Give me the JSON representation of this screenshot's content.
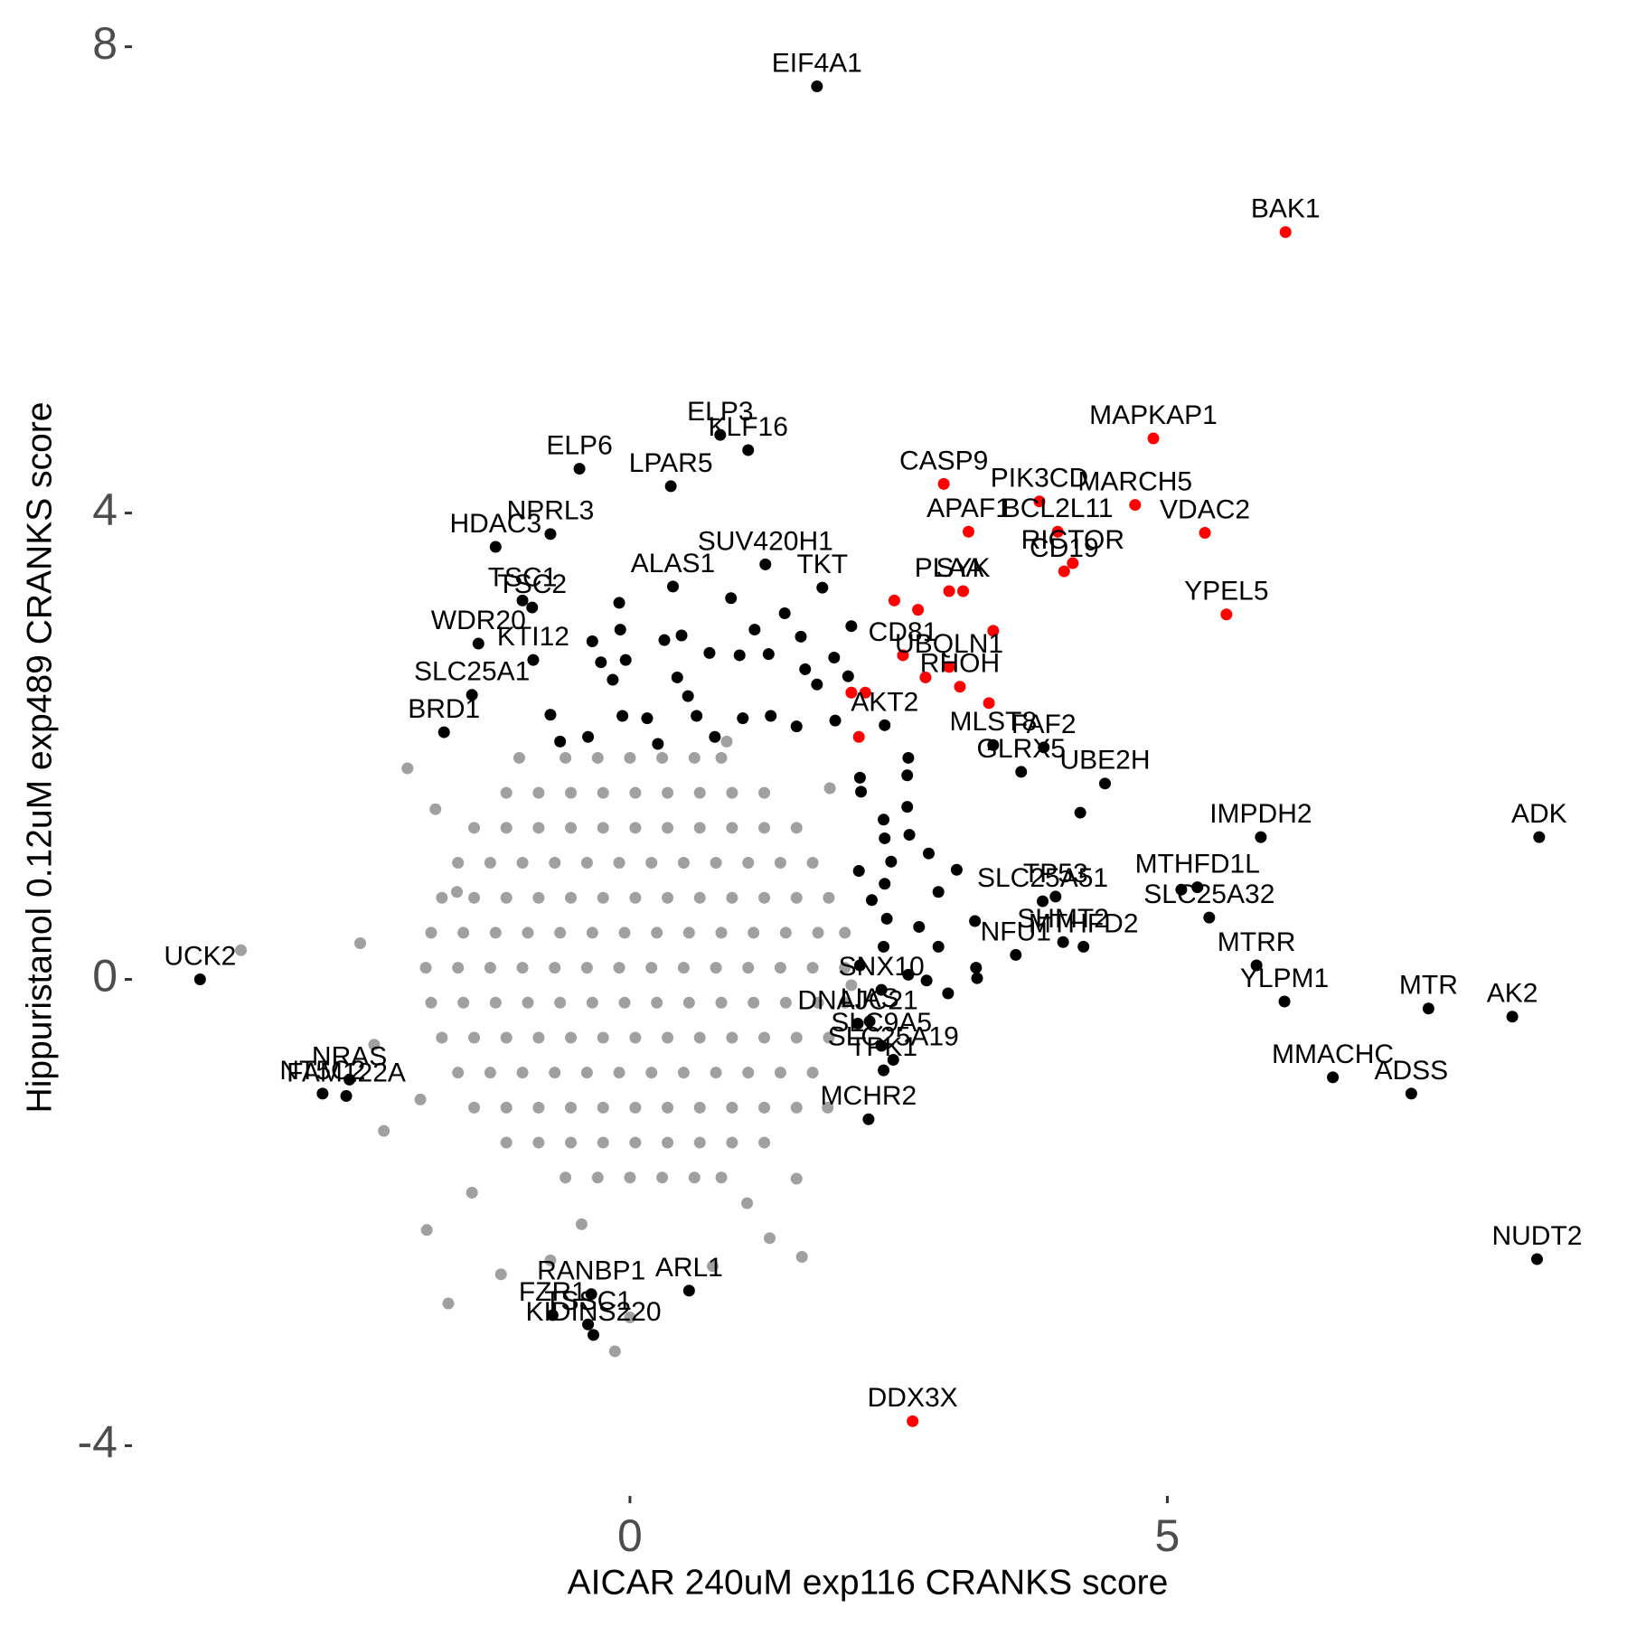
{
  "chart_data": {
    "type": "scatter",
    "xlabel": "AICAR 240uM exp116 CRANKS score",
    "ylabel": "Hippuristanol 0.12uM exp489 CRANKS score",
    "xlim": [
      -4.6,
      9.05
    ],
    "ylim": [
      -4.4,
      8.3
    ],
    "xticks": [
      0,
      5
    ],
    "yticks": [
      -4,
      0,
      4,
      8
    ],
    "series": [
      {
        "color": "#a0a0a0",
        "x": [
          -0.6,
          -0.3,
          0,
          0.3,
          0.6,
          0.85,
          -1.15,
          -0.85,
          -0.55,
          -0.25,
          0.05,
          0.35,
          0.65,
          0.95,
          1.25,
          -1.45,
          -1.15,
          -0.85,
          -0.55,
          -0.25,
          0.05,
          0.35,
          0.65,
          0.95,
          1.25,
          1.55,
          -1.6,
          -1.3,
          -1,
          -0.7,
          -0.4,
          -0.1,
          0.2,
          0.5,
          0.8,
          1.1,
          1.4,
          1.7,
          -1.75,
          -1.45,
          -1.15,
          -0.85,
          -0.55,
          -0.25,
          0.05,
          0.35,
          0.65,
          0.95,
          1.25,
          1.55,
          1.85,
          -1.85,
          -1.55,
          -1.25,
          -0.95,
          -0.65,
          -0.35,
          -0.05,
          0.25,
          0.55,
          0.85,
          1.15,
          1.45,
          1.75,
          2,
          -1.9,
          -1.6,
          -1.3,
          -1,
          -0.7,
          -0.4,
          -0.1,
          0.2,
          0.5,
          0.8,
          1.1,
          1.4,
          1.7,
          2,
          -1.85,
          -1.55,
          -1.25,
          -0.95,
          -0.65,
          -0.35,
          -0.05,
          0.25,
          0.55,
          0.85,
          1.15,
          1.45,
          1.75,
          2,
          -1.75,
          -1.45,
          -1.15,
          -0.85,
          -0.55,
          -0.25,
          0.05,
          0.35,
          0.65,
          0.95,
          1.25,
          1.55,
          1.85,
          -1.6,
          -1.3,
          -1,
          -0.7,
          -0.4,
          -0.1,
          0.2,
          0.5,
          0.8,
          1.1,
          1.4,
          1.7,
          -1.45,
          -1.15,
          -0.85,
          -0.55,
          -0.25,
          0.05,
          0.35,
          0.65,
          0.95,
          1.25,
          1.55,
          -1.15,
          -0.85,
          -0.55,
          -0.25,
          0.05,
          0.35,
          0.65,
          0.95,
          1.25,
          -0.6,
          -0.3,
          0,
          0.3,
          0.6,
          0.85,
          -3.62,
          -2.51,
          -1.89,
          -2.07,
          -1.69,
          -0.14,
          0.77,
          1.3,
          1.6,
          1.84,
          -2.38,
          -2.29,
          -1.2,
          -0.74,
          0,
          1.55,
          2.06,
          1.86,
          -1.81,
          -1.03,
          0.9,
          -1.47,
          1.09,
          -0.45,
          -1.61,
          -1.95
        ],
        "values": [
          1.9,
          1.9,
          1.9,
          1.9,
          1.9,
          1.9,
          1.6,
          1.6,
          1.6,
          1.6,
          1.6,
          1.6,
          1.6,
          1.6,
          1.6,
          1.3,
          1.3,
          1.3,
          1.3,
          1.3,
          1.3,
          1.3,
          1.3,
          1.3,
          1.3,
          1.3,
          1,
          1,
          1,
          1,
          1,
          1,
          1,
          1,
          1,
          1,
          1,
          1,
          0.7,
          0.7,
          0.7,
          0.7,
          0.7,
          0.7,
          0.7,
          0.7,
          0.7,
          0.7,
          0.7,
          0.7,
          0.7,
          0.4,
          0.4,
          0.4,
          0.4,
          0.4,
          0.4,
          0.4,
          0.4,
          0.4,
          0.4,
          0.4,
          0.4,
          0.4,
          0.4,
          0.1,
          0.1,
          0.1,
          0.1,
          0.1,
          0.1,
          0.1,
          0.1,
          0.1,
          0.1,
          0.1,
          0.1,
          0.1,
          0.1,
          -0.2,
          -0.2,
          -0.2,
          -0.2,
          -0.2,
          -0.2,
          -0.2,
          -0.2,
          -0.2,
          -0.2,
          -0.2,
          -0.2,
          -0.2,
          -0.2,
          -0.5,
          -0.5,
          -0.5,
          -0.5,
          -0.5,
          -0.5,
          -0.5,
          -0.5,
          -0.5,
          -0.5,
          -0.5,
          -0.5,
          -0.5,
          -0.8,
          -0.8,
          -0.8,
          -0.8,
          -0.8,
          -0.8,
          -0.8,
          -0.8,
          -0.8,
          -0.8,
          -0.8,
          -0.8,
          -1.1,
          -1.1,
          -1.1,
          -1.1,
          -1.1,
          -1.1,
          -1.1,
          -1.1,
          -1.1,
          -1.1,
          -1.1,
          -1.4,
          -1.4,
          -1.4,
          -1.4,
          -1.4,
          -1.4,
          -1.4,
          -1.4,
          -1.4,
          -1.7,
          -1.7,
          -1.7,
          -1.7,
          -1.7,
          -1.7,
          0.25,
          0.31,
          -2.15,
          1.81,
          -2.78,
          -3.19,
          -2.46,
          -2.22,
          -2.38,
          -1.1,
          -0.56,
          -1.3,
          -2.53,
          -2.41,
          -2.9,
          -1.71,
          -0.05,
          1.64,
          1.46,
          1.9,
          2.04,
          -1.83,
          -1.92,
          -2.1,
          0.75,
          -1.03
        ]
      },
      {
        "color": "#000000",
        "x": [
          1.74,
          -4,
          -2.86,
          -2.61,
          -2.64,
          0.84,
          -0.47,
          0.38,
          1.1,
          -0.74,
          1.26,
          -1.25,
          -0.91,
          -1,
          0.4,
          1.79,
          -1.41,
          -0.9,
          -1.47,
          -1.73,
          2.37,
          3.38,
          3.85,
          4.42,
          3.64,
          5.87,
          8.46,
          3.84,
          3.96,
          5.28,
          4.03,
          5.39,
          4.22,
          3.59,
          5.83,
          7.43,
          6.09,
          8.21,
          6.54,
          7.27,
          8.44,
          2.34,
          2.12,
          2.23,
          2.45,
          2.34,
          2.36,
          2.22,
          -0.36,
          0.55,
          -0.72,
          -0.39,
          -0.34,
          5.13,
          -0.1,
          -0.09,
          -0.04,
          -0.35,
          -0.27,
          -0.16,
          -0.07,
          0.16,
          0.32,
          0.48,
          0.44,
          0.54,
          0.62,
          0.74,
          0.94,
          1.02,
          1.16,
          1.29,
          1.44,
          1.59,
          1.63,
          1.74,
          1.9,
          2.06,
          2.03,
          1.91,
          1.55,
          1.31,
          1.05,
          0.79,
          0.26,
          -0.39,
          -0.65,
          -0.74,
          2.59,
          2.58,
          2.14,
          2.15,
          2.58,
          2.36,
          2.37,
          2.6,
          2.78,
          2.43,
          2.13,
          2.37,
          2.87,
          3.04,
          2.25,
          2.39,
          2.69,
          3.21,
          2.36,
          2.87,
          2.14,
          2.59,
          2.76,
          3.22,
          2.96,
          3.23,
          4.19
        ],
        "values": [
          7.66,
          0,
          -0.98,
          -0.86,
          -1,
          4.67,
          4.38,
          4.23,
          4.54,
          3.82,
          3.56,
          3.71,
          3.19,
          3.25,
          3.37,
          3.36,
          2.88,
          2.74,
          2.44,
          2.12,
          2.18,
          2.01,
          1.99,
          1.68,
          1.78,
          1.22,
          1.22,
          0.67,
          0.71,
          0.79,
          0.32,
          0.53,
          0.28,
          0.21,
          0.12,
          -0.25,
          -0.19,
          -0.32,
          -0.84,
          -0.98,
          -2.4,
          -0.09,
          -0.38,
          -0.36,
          -0.69,
          -0.57,
          -0.78,
          -1.2,
          -2.7,
          -2.67,
          -2.88,
          -2.96,
          -3.05,
          0.77,
          3.23,
          3,
          2.74,
          2.9,
          2.72,
          2.57,
          2.26,
          2.24,
          2.91,
          2.95,
          2.59,
          2.43,
          2.26,
          2.8,
          3.27,
          2.78,
          3,
          2.79,
          3.14,
          2.94,
          2.66,
          2.53,
          2.76,
          3.03,
          2.6,
          2.22,
          2.17,
          2.26,
          2.24,
          2.08,
          2.02,
          2.08,
          2.04,
          2.27,
          1.9,
          1.75,
          1.73,
          1.61,
          1.48,
          1.37,
          1.21,
          1.24,
          1.08,
          1.01,
          0.93,
          0.82,
          0.75,
          0.94,
          0.68,
          0.52,
          0.45,
          0.5,
          0.28,
          0.28,
          0.12,
          0.04,
          -0.01,
          0.1,
          -0.12,
          0.01,
          1.43
        ],
        "labels": [
          "EIF4A1",
          "UCK2",
          "NT5C2",
          "NRAS",
          "FAM122A",
          "ELP3",
          "ELP6",
          "LPAR5",
          "KLF16",
          "NPRL3",
          "SUV420H1",
          "HDAC3",
          "TSC2",
          "TSC1",
          "ALAS1",
          "TKT",
          "WDR20",
          "KTI12",
          "SLC25A1",
          "BRD1",
          "AKT2",
          "MLST8",
          "FAF2",
          "UBE2H",
          "GLRX5",
          "IMPDH2",
          "ADK",
          "SLC25A51",
          "TP53",
          "MTHFD1L",
          "SHMT2",
          "SLC25A32",
          "MTHFD2",
          "NFU1",
          "MTRR",
          "MTR",
          "YLPM1",
          "AK2",
          "MMACHC",
          "ADSS",
          "NUDT2",
          "SNX10",
          "DNAJC21",
          "LIAS",
          "SLC25A19",
          "SLC9A5",
          "TPK1",
          "MCHR2",
          "RANBP1",
          "ARL1",
          "FZR1",
          "TSSC1",
          "KIDINS220",
          null,
          null,
          null,
          null,
          null,
          null,
          null,
          null,
          null,
          null,
          null,
          null,
          null,
          null,
          null,
          null,
          null,
          null,
          null,
          null,
          null,
          null,
          null,
          null,
          null,
          null,
          null,
          null,
          null,
          null,
          null,
          null,
          null,
          null,
          null,
          null,
          null,
          null,
          null,
          null,
          null,
          null,
          null,
          null,
          null,
          null,
          null,
          null,
          null,
          null,
          null,
          null,
          null,
          null,
          null,
          null,
          null,
          null,
          null,
          null,
          null,
          null
        ]
      },
      {
        "color": "#ff0000",
        "x": [
          6.1,
          4.87,
          4.7,
          5.35,
          2.92,
          3.81,
          3.15,
          3.98,
          2.97,
          4.12,
          4.04,
          3.1,
          5.55,
          2.54,
          2.97,
          3.07,
          2.63,
          3.38,
          2.46,
          2.68,
          2.75,
          2.06,
          2.19,
          2.13,
          3.34
        ],
        "values": [
          6.41,
          4.64,
          4.07,
          3.83,
          4.25,
          4.1,
          3.84,
          3.84,
          3.33,
          3.57,
          3.5,
          3.33,
          3.13,
          2.78,
          2.68,
          2.51,
          -3.79,
          2.99,
          3.25,
          3.17,
          2.59,
          2.46,
          2.46,
          2.08,
          2.37
        ],
        "labels": [
          "BAK1",
          "MAPKAP1",
          "MARCH5",
          "VDAC2",
          "CASP9",
          "PIK3CD",
          "APAF1",
          "BCL2L11",
          "PLAA",
          "RICTOR",
          "CD19",
          "SYK",
          "YPEL5",
          "CD81",
          "UBQLN1",
          "RHOH",
          "DDX3X",
          null,
          null,
          null,
          null,
          null,
          null,
          null,
          null
        ]
      }
    ]
  }
}
